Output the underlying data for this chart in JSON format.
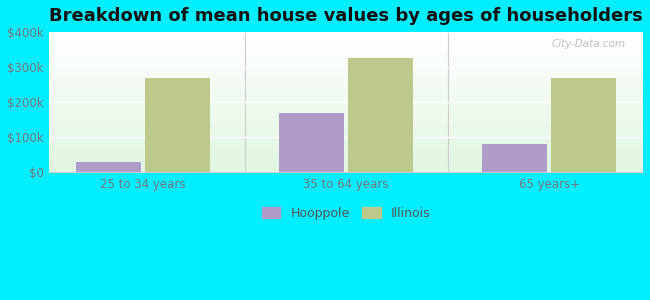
{
  "title": "Breakdown of mean house values by ages of householders",
  "categories": [
    "25 to 34 years",
    "35 to 64 years",
    "65 years+"
  ],
  "hooppole_values": [
    30000,
    170000,
    80000
  ],
  "illinois_values": [
    270000,
    325000,
    270000
  ],
  "bar_color_hooppole": "#b09cc8",
  "bar_color_illinois": "#bdc98a",
  "ylim": [
    0,
    400000
  ],
  "yticks": [
    0,
    100000,
    200000,
    300000,
    400000
  ],
  "ytick_labels": [
    "$0",
    "$100k",
    "$200k",
    "$300k",
    "$400k"
  ],
  "background_color": "#00eeff",
  "legend_hooppole": "Hooppole",
  "legend_illinois": "Illinois",
  "title_fontsize": 13,
  "bar_width": 0.32,
  "watermark": "City-Data.com"
}
